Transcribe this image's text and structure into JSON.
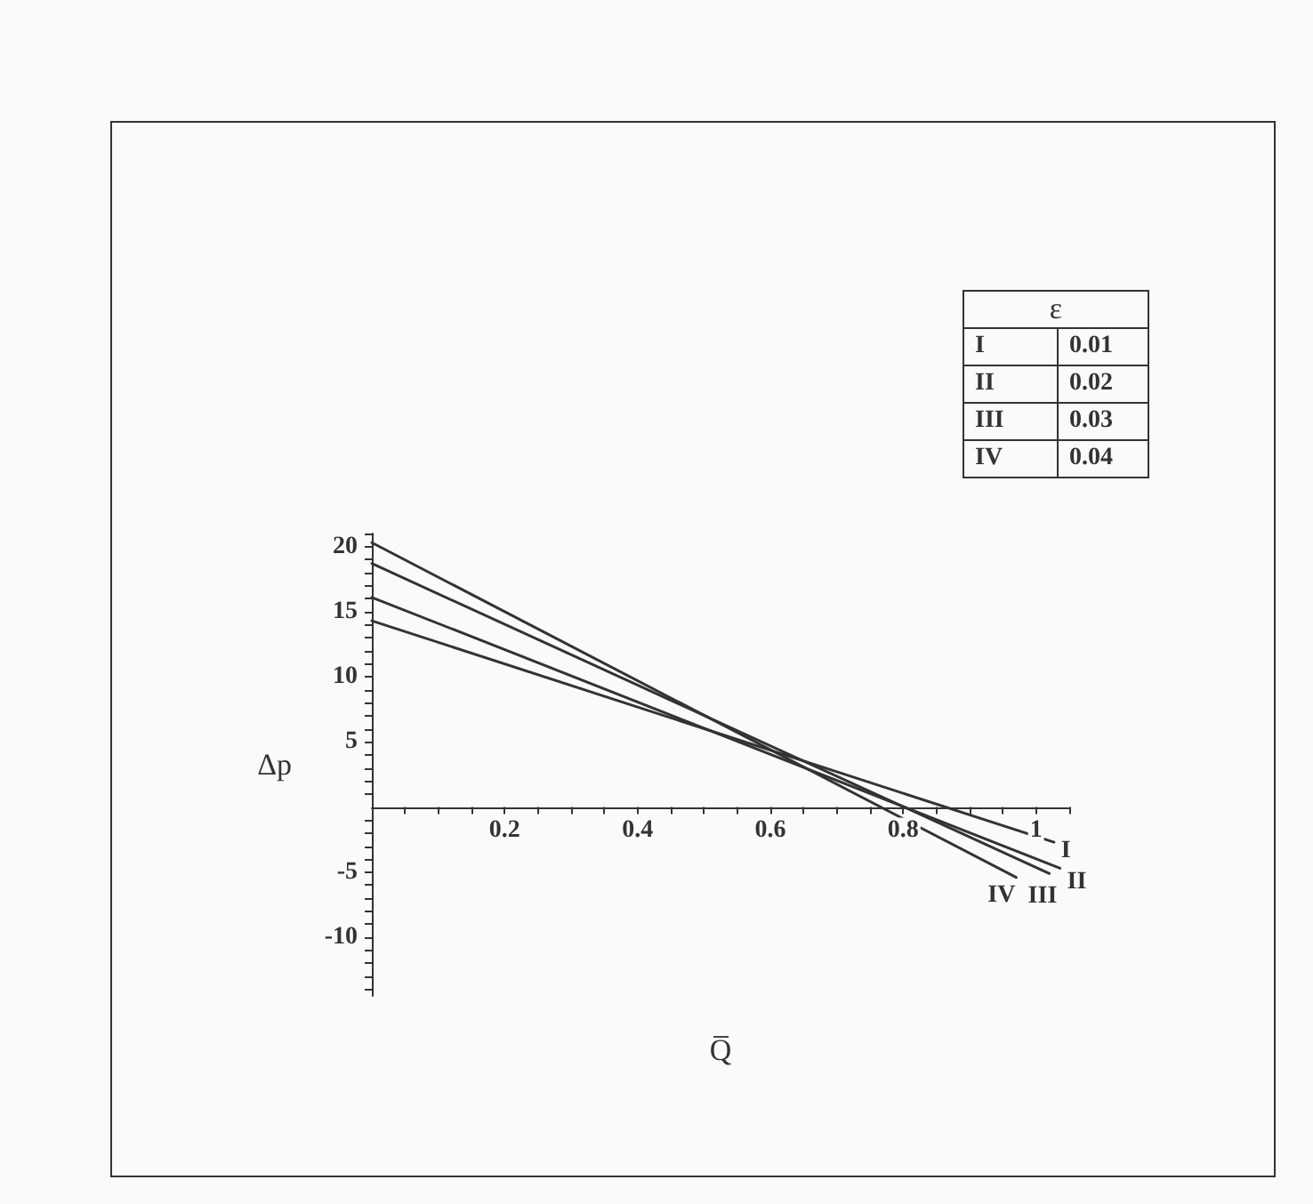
{
  "chart_data": {
    "type": "line",
    "xlabel": "Q̅",
    "ylabel": "Δp",
    "legend_title": "ε",
    "marker": "none",
    "legend": "top right",
    "line_style": "solid",
    "annotations": [
      "0.01",
      "0.02",
      "0.03",
      "0.04"
    ],
    "xlim": [
      0,
      1.05
    ],
    "ylim": [
      -14.5,
      21
    ],
    "xticks": [
      {
        "value": 0.05,
        "label": null
      },
      {
        "value": 0.1,
        "label": null
      },
      {
        "value": 0.15,
        "label": null
      },
      0.2,
      {
        "value": 0.25,
        "label": null
      },
      {
        "value": 0.3,
        "label": null
      },
      {
        "value": 0.35,
        "label": null
      },
      0.4,
      {
        "value": 0.45,
        "label": null
      },
      {
        "value": 0.5,
        "label": null
      },
      {
        "value": 0.55,
        "label": null
      },
      0.6,
      {
        "value": 0.65,
        "label": null
      },
      {
        "value": 0.7,
        "label": null
      },
      {
        "value": 0.75,
        "label": null
      },
      0.8,
      {
        "value": 0.85,
        "label": null
      },
      {
        "value": 0.9,
        "label": null
      },
      {
        "value": 0.95,
        "label": null
      },
      1,
      {
        "value": 1.05,
        "label": null
      }
    ],
    "yticks": [
      {
        "value": -14,
        "label": null
      },
      {
        "value": -13,
        "label": null
      },
      {
        "value": -12,
        "label": null
      },
      {
        "value": -11,
        "label": null
      },
      -10,
      {
        "value": -9,
        "label": null
      },
      {
        "value": -8,
        "label": null
      },
      {
        "value": -7,
        "label": null
      },
      {
        "value": -6,
        "label": null
      },
      -5,
      {
        "value": -4,
        "label": null
      },
      {
        "value": -3,
        "label": null
      },
      {
        "value": -2,
        "label": null
      },
      {
        "value": -1,
        "label": null
      },
      {
        "value": 1,
        "label": null
      },
      {
        "value": 2,
        "label": null
      },
      {
        "value": 3,
        "label": null
      },
      {
        "value": 4,
        "label": null
      },
      5,
      {
        "value": 6,
        "label": null
      },
      {
        "value": 7,
        "label": null
      },
      {
        "value": 8,
        "label": null
      },
      {
        "value": 9,
        "label": null
      },
      10,
      {
        "value": 11,
        "label": null
      },
      {
        "value": 12,
        "label": null
      },
      {
        "value": 13,
        "label": null
      },
      {
        "value": 14,
        "label": null
      },
      15,
      {
        "value": 16,
        "label": null
      },
      {
        "value": 17,
        "label": null
      },
      {
        "value": 18,
        "label": null
      },
      {
        "value": 19,
        "label": null
      },
      20,
      {
        "value": 21,
        "label": null
      }
    ],
    "series": [
      {
        "name": "I",
        "color": "#333333",
        "x": [
          0,
          1.027
        ],
        "values": [
          14.3,
          -2.7
        ]
      },
      {
        "name": "II",
        "color": "#333333",
        "x": [
          0,
          1.036
        ],
        "values": [
          16.1,
          -4.7
        ]
      },
      {
        "name": "III",
        "color": "#333333",
        "x": [
          0,
          1.02
        ],
        "values": [
          18.7,
          -5.1
        ]
      },
      {
        "name": "IV",
        "color": "#333333",
        "x": [
          0,
          0.97
        ],
        "values": [
          20.3,
          -5.4
        ]
      }
    ]
  }
}
